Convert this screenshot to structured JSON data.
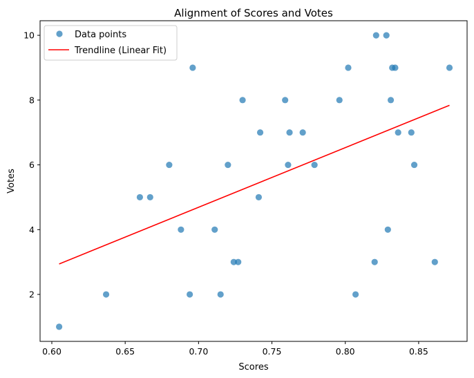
{
  "chart_data": {
    "type": "scatter",
    "title": "Alignment of Scores and Votes",
    "xlabel": "Scores",
    "ylabel": "Votes",
    "xlim": [
      0.592,
      0.883
    ],
    "ylim": [
      0.55,
      10.45
    ],
    "xticks": [
      0.6,
      0.65,
      0.7,
      0.75,
      0.8,
      0.85
    ],
    "xtick_labels": [
      "0.60",
      "0.65",
      "0.70",
      "0.75",
      "0.80",
      "0.85"
    ],
    "yticks": [
      2,
      4,
      6,
      8,
      10
    ],
    "ytick_labels": [
      "2",
      "4",
      "6",
      "8",
      "10"
    ],
    "grid": false,
    "legend_position": "top-left",
    "series": [
      {
        "name": "Data points",
        "kind": "scatter",
        "color": "#1f77b4",
        "points": [
          [
            0.605,
            1
          ],
          [
            0.637,
            2
          ],
          [
            0.66,
            5
          ],
          [
            0.667,
            5
          ],
          [
            0.68,
            6
          ],
          [
            0.688,
            4
          ],
          [
            0.694,
            2
          ],
          [
            0.696,
            9
          ],
          [
            0.711,
            4
          ],
          [
            0.715,
            2
          ],
          [
            0.72,
            6
          ],
          [
            0.724,
            3
          ],
          [
            0.727,
            3
          ],
          [
            0.73,
            8
          ],
          [
            0.741,
            5
          ],
          [
            0.742,
            7
          ],
          [
            0.759,
            8
          ],
          [
            0.761,
            6
          ],
          [
            0.762,
            7
          ],
          [
            0.771,
            7
          ],
          [
            0.779,
            6
          ],
          [
            0.796,
            8
          ],
          [
            0.802,
            9
          ],
          [
            0.807,
            2
          ],
          [
            0.82,
            3
          ],
          [
            0.821,
            10
          ],
          [
            0.828,
            10
          ],
          [
            0.829,
            4
          ],
          [
            0.831,
            8
          ],
          [
            0.832,
            9
          ],
          [
            0.834,
            9
          ],
          [
            0.836,
            7
          ],
          [
            0.845,
            7
          ],
          [
            0.847,
            6
          ],
          [
            0.861,
            3
          ],
          [
            0.871,
            9
          ]
        ]
      },
      {
        "name": "Trendline (Linear Fit)",
        "kind": "line",
        "color": "#ff0000",
        "points": [
          [
            0.605,
            2.94
          ],
          [
            0.871,
            7.84
          ]
        ]
      }
    ]
  }
}
